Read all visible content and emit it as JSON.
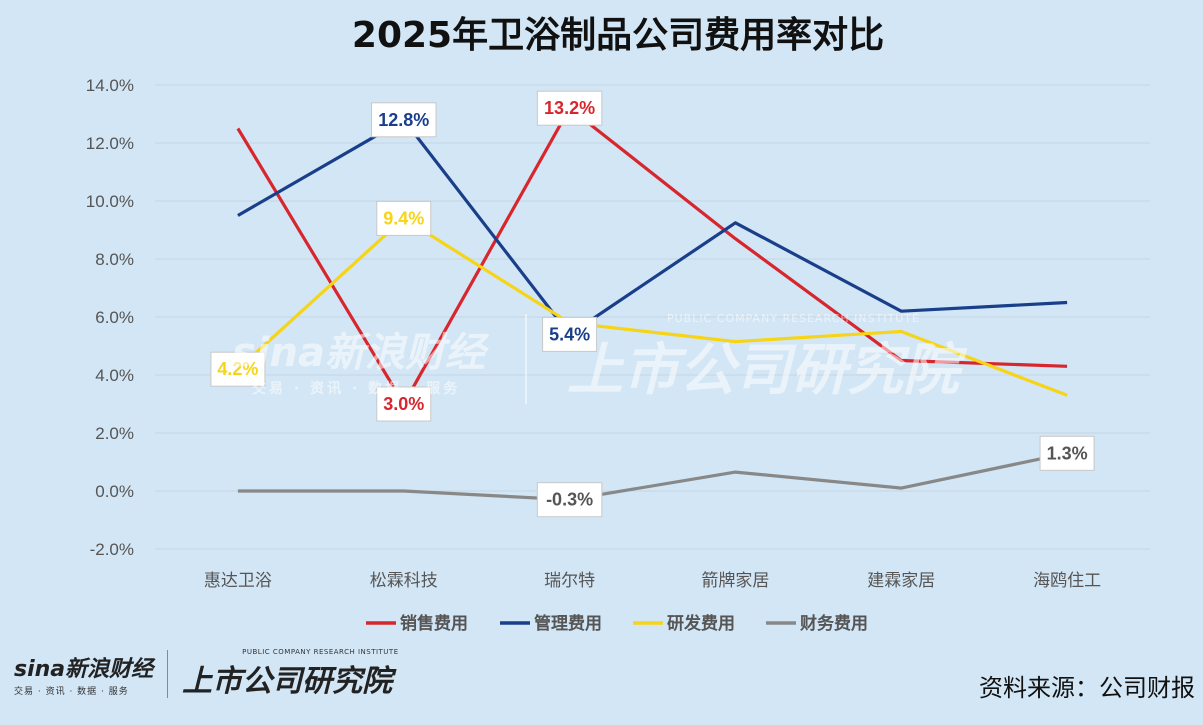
{
  "chart_data": {
    "type": "line",
    "title": "2025年卫浴制品公司费用率对比",
    "categories": [
      "惠达卫浴",
      "松霖科技",
      "瑞尔特",
      "箭牌家居",
      "建霖家居",
      "海鸥住工"
    ],
    "ylim": [
      -2.0,
      14.0
    ],
    "yticks": [
      "-2.0%",
      "0.0%",
      "2.0%",
      "4.0%",
      "6.0%",
      "8.0%",
      "10.0%",
      "12.0%",
      "14.0%"
    ],
    "grid": true,
    "legend_position": "bottom",
    "series": [
      {
        "name": "销售费用",
        "color": "#d7262d",
        "values": [
          12.5,
          3.0,
          13.2,
          8.7,
          4.5,
          4.3
        ]
      },
      {
        "name": "管理费用",
        "color": "#1a3f8a",
        "values": [
          9.5,
          12.8,
          5.4,
          9.25,
          6.2,
          6.5
        ]
      },
      {
        "name": "研发费用",
        "color": "#f6d417",
        "values": [
          4.2,
          9.4,
          5.8,
          5.15,
          5.5,
          3.3
        ]
      },
      {
        "name": "财务费用",
        "color": "#888888",
        "values": [
          0.0,
          0.0,
          -0.3,
          0.65,
          0.1,
          1.3
        ]
      }
    ],
    "data_labels": [
      {
        "series": 0,
        "index": 1,
        "text": "3.0%"
      },
      {
        "series": 0,
        "index": 2,
        "text": "13.2%"
      },
      {
        "series": 1,
        "index": 1,
        "text": "12.8%"
      },
      {
        "series": 1,
        "index": 2,
        "text": "5.4%"
      },
      {
        "series": 2,
        "index": 0,
        "text": "4.2%"
      },
      {
        "series": 2,
        "index": 1,
        "text": "9.4%"
      },
      {
        "series": 3,
        "index": 2,
        "text": "-0.3%"
      },
      {
        "series": 3,
        "index": 5,
        "text": "1.3%"
      }
    ]
  },
  "footer": {
    "sina_logo": "sina新浪财经",
    "sina_sub": "交易 · 资讯 · 数据 · 服务",
    "institute_en": "PUBLIC COMPANY RESEARCH INSTITUTE",
    "institute_cn": "上市公司研究院",
    "source": "资料来源：公司财报"
  }
}
